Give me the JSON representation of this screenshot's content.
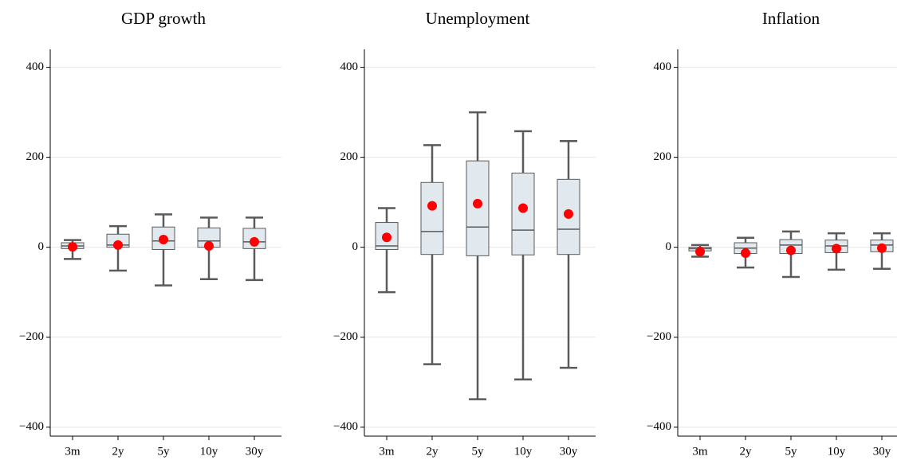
{
  "chart_data": [
    {
      "type": "box",
      "title": "GDP growth",
      "categories": [
        "3m",
        "2y",
        "5y",
        "10y",
        "30y"
      ],
      "low": [
        -26,
        -52,
        -85,
        -71,
        -73
      ],
      "q1": [
        -3,
        0,
        -5,
        0,
        -3
      ],
      "median": [
        3,
        5,
        14,
        14,
        12
      ],
      "q3": [
        10,
        29,
        45,
        43,
        42
      ],
      "high": [
        16,
        47,
        73,
        66,
        66
      ],
      "mean": [
        1,
        5,
        17,
        3,
        12
      ],
      "ylim": [
        -420,
        440
      ],
      "yticks": [
        {
          "value": -400,
          "label": "−400"
        },
        {
          "value": -200,
          "label": "−200"
        },
        0,
        200,
        400
      ],
      "grid": true,
      "box_color": "#e1e9ef",
      "line_color": "#5a5a5a",
      "mean_color": "#ff0000"
    },
    {
      "type": "box",
      "title": "Unemployment",
      "categories": [
        "3m",
        "2y",
        "5y",
        "10y",
        "30y"
      ],
      "low": [
        -100,
        -260,
        -338,
        -294,
        -268
      ],
      "q1": [
        -5,
        -16,
        -19,
        -17,
        -16
      ],
      "median": [
        3,
        35,
        45,
        38,
        40
      ],
      "q3": [
        55,
        144,
        192,
        165,
        151
      ],
      "high": [
        87,
        227,
        300,
        258,
        236
      ],
      "mean": [
        22,
        92,
        97,
        87,
        74
      ],
      "ylim": [
        -420,
        440
      ],
      "yticks": [
        {
          "value": -400,
          "label": "−400"
        },
        {
          "value": -200,
          "label": "−200"
        },
        0,
        200,
        400
      ],
      "grid": true,
      "box_color": "#e1e9ef",
      "line_color": "#5a5a5a",
      "mean_color": "#ff0000"
    },
    {
      "type": "box",
      "title": "Inflation",
      "categories": [
        "3m",
        "2y",
        "5y",
        "10y",
        "30y"
      ],
      "low": [
        -21,
        -45,
        -66,
        -50,
        -48
      ],
      "q1": [
        -8,
        -14,
        -14,
        -12,
        -10
      ],
      "median": [
        -3,
        -2,
        5,
        3,
        5
      ],
      "q3": [
        0,
        10,
        17,
        16,
        16
      ],
      "high": [
        5,
        21,
        35,
        31,
        31
      ],
      "mean": [
        -10,
        -13,
        -7,
        -3,
        -2
      ],
      "ylim": [
        -420,
        440
      ],
      "yticks": [
        {
          "value": -400,
          "label": "−400"
        },
        {
          "value": -200,
          "label": "−200"
        },
        0,
        200,
        400
      ],
      "grid": true,
      "box_color": "#e1e9ef",
      "line_color": "#5a5a5a",
      "mean_color": "#ff0000"
    }
  ]
}
